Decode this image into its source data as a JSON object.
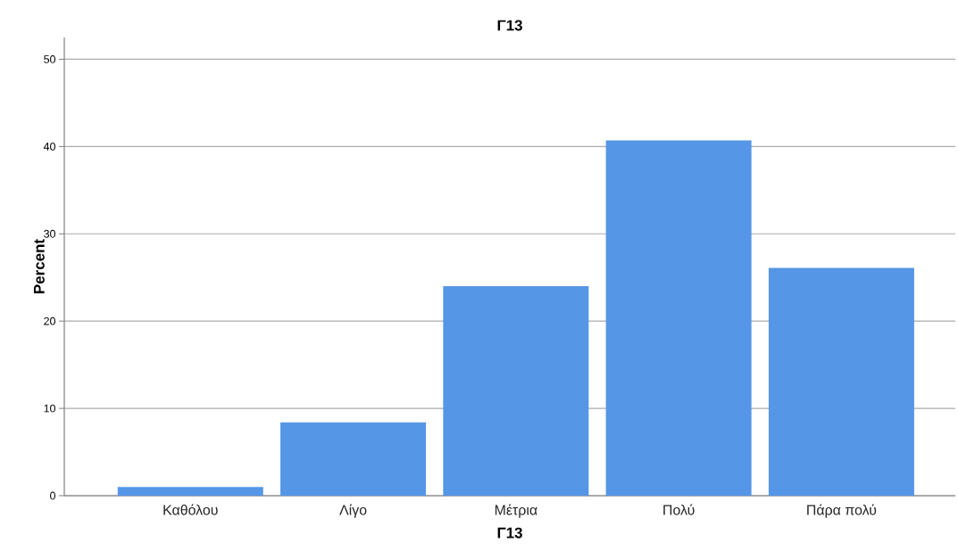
{
  "chart_data": {
    "type": "bar",
    "title": "Γ13",
    "xlabel": "Γ13",
    "ylabel": "Percent",
    "categories": [
      "Καθόλου",
      "Λίγο",
      "Μέτρια",
      "Πολύ",
      "Πάρα πολύ"
    ],
    "values": [
      1.0,
      8.4,
      24.0,
      40.7,
      26.1
    ],
    "color": "#5596e6",
    "ylim": [
      0,
      52.5
    ],
    "yticks": [
      0,
      10,
      20,
      30,
      40,
      50
    ],
    "grid": "y"
  }
}
